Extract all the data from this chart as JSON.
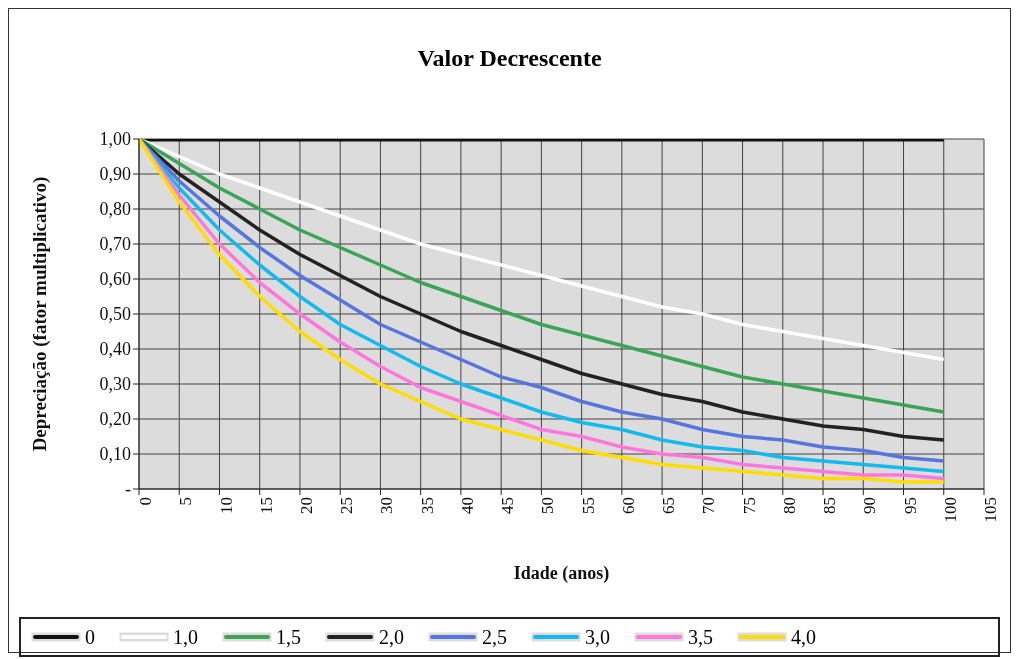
{
  "chart_data": {
    "type": "line",
    "title": "Valor Decrescente",
    "xlabel": "Idade (anos)",
    "ylabel": "Depreciação (fator multiplicativo)",
    "x": [
      0,
      5,
      10,
      15,
      20,
      25,
      30,
      35,
      40,
      45,
      50,
      55,
      60,
      65,
      70,
      75,
      80,
      85,
      90,
      95,
      100
    ],
    "series": [
      {
        "name": "0",
        "color": "#111111",
        "values": [
          1,
          1,
          1,
          1,
          1,
          1,
          1,
          1,
          1,
          1,
          1,
          1,
          1,
          1,
          1,
          1,
          1,
          1,
          1,
          1,
          1
        ]
      },
      {
        "name": "1,0",
        "color": "#ffffff",
        "values": [
          1,
          0.95,
          0.9,
          0.86,
          0.82,
          0.78,
          0.74,
          0.7,
          0.67,
          0.64,
          0.61,
          0.58,
          0.55,
          0.52,
          0.5,
          0.47,
          0.45,
          0.43,
          0.41,
          0.39,
          0.37
        ]
      },
      {
        "name": "1,5",
        "color": "#3aa655",
        "values": [
          1,
          0.93,
          0.86,
          0.8,
          0.74,
          0.69,
          0.64,
          0.59,
          0.55,
          0.51,
          0.47,
          0.44,
          0.41,
          0.38,
          0.35,
          0.32,
          0.3,
          0.28,
          0.26,
          0.24,
          0.22
        ]
      },
      {
        "name": "2,0",
        "color": "#222222",
        "values": [
          1,
          0.9,
          0.82,
          0.74,
          0.67,
          0.61,
          0.55,
          0.5,
          0.45,
          0.41,
          0.37,
          0.33,
          0.3,
          0.27,
          0.25,
          0.22,
          0.2,
          0.18,
          0.17,
          0.15,
          0.14
        ]
      },
      {
        "name": "2,5",
        "color": "#5577dd",
        "values": [
          1,
          0.88,
          0.78,
          0.69,
          0.61,
          0.54,
          0.47,
          0.42,
          0.37,
          0.32,
          0.29,
          0.25,
          0.22,
          0.2,
          0.17,
          0.15,
          0.14,
          0.12,
          0.11,
          0.09,
          0.08
        ]
      },
      {
        "name": "3,0",
        "color": "#11bbee",
        "values": [
          1,
          0.86,
          0.74,
          0.64,
          0.55,
          0.47,
          0.41,
          0.35,
          0.3,
          0.26,
          0.22,
          0.19,
          0.17,
          0.14,
          0.12,
          0.11,
          0.09,
          0.08,
          0.07,
          0.06,
          0.05
        ]
      },
      {
        "name": "3,5",
        "color": "#ff77dd",
        "values": [
          1,
          0.84,
          0.7,
          0.59,
          0.5,
          0.42,
          0.35,
          0.29,
          0.25,
          0.21,
          0.17,
          0.15,
          0.12,
          0.1,
          0.09,
          0.07,
          0.06,
          0.05,
          0.04,
          0.04,
          0.03
        ]
      },
      {
        "name": "4,0",
        "color": "#ffdd00",
        "values": [
          1,
          0.82,
          0.67,
          0.55,
          0.45,
          0.37,
          0.3,
          0.25,
          0.2,
          0.17,
          0.14,
          0.11,
          0.09,
          0.07,
          0.06,
          0.05,
          0.04,
          0.03,
          0.03,
          0.02,
          0.02
        ]
      }
    ],
    "xlim": [
      0,
      105
    ],
    "xticks": [
      0,
      5,
      10,
      15,
      20,
      25,
      30,
      35,
      40,
      45,
      50,
      55,
      60,
      65,
      70,
      75,
      80,
      85,
      90,
      95,
      100,
      105
    ],
    "ylim": [
      0,
      1
    ],
    "yticks": [
      {
        "value": 0,
        "label": "-"
      },
      {
        "value": 0.1,
        "label": "0,10"
      },
      {
        "value": 0.2,
        "label": "0,20"
      },
      {
        "value": 0.3,
        "label": "0,30"
      },
      {
        "value": 0.4,
        "label": "0,40"
      },
      {
        "value": 0.5,
        "label": "0,50"
      },
      {
        "value": 0.6,
        "label": "0,60"
      },
      {
        "value": 0.7,
        "label": "0,70"
      },
      {
        "value": 0.8,
        "label": "0,80"
      },
      {
        "value": 0.9,
        "label": "0,90"
      },
      {
        "value": 1,
        "label": "1,00"
      }
    ],
    "grid": true,
    "legend": "bottom",
    "marker": "none",
    "line_style": "solid"
  }
}
